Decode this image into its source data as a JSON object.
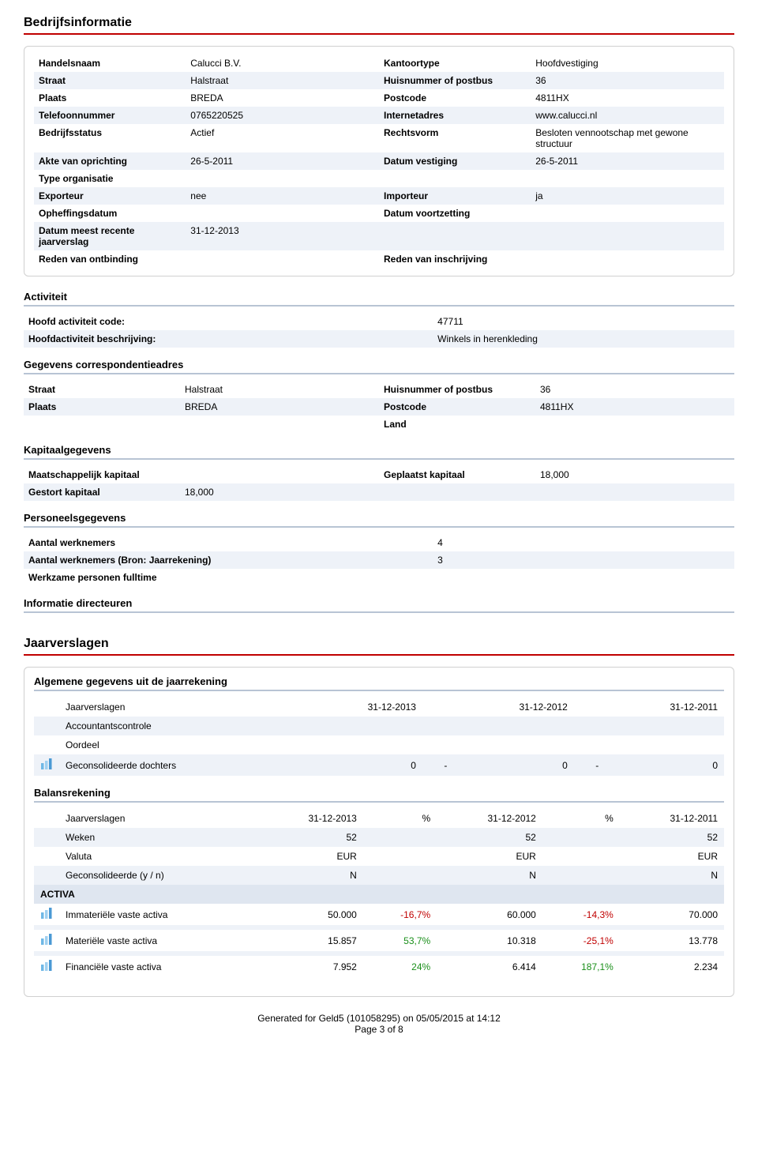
{
  "section_bedrijfsinformatie": "Bedrijfsinformatie",
  "company": {
    "rows": [
      {
        "l1": "Handelsnaam",
        "v1": "Calucci B.V.",
        "l2": "Kantoortype",
        "v2": "Hoofdvestiging"
      },
      {
        "l1": "Straat",
        "v1": "Halstraat",
        "l2": "Huisnummer of postbus",
        "v2": "36"
      },
      {
        "l1": "Plaats",
        "v1": "BREDA",
        "l2": "Postcode",
        "v2": "4811HX"
      },
      {
        "l1": "Telefoonnummer",
        "v1": "0765220525",
        "l2": "Internetadres",
        "v2": "www.calucci.nl"
      },
      {
        "l1": "Bedrijfsstatus",
        "v1": "Actief",
        "l2": "Rechtsvorm",
        "v2": "Besloten vennootschap met gewone structuur"
      },
      {
        "l1": "Akte van oprichting",
        "v1": "26-5-2011",
        "l2": "Datum vestiging",
        "v2": "26-5-2011"
      },
      {
        "l1": "Type organisatie",
        "v1": "",
        "l2": "",
        "v2": ""
      },
      {
        "l1": "Exporteur",
        "v1": "nee",
        "l2": "Importeur",
        "v2": "ja"
      },
      {
        "l1": "Opheffingsdatum",
        "v1": "",
        "l2": "Datum voortzetting",
        "v2": ""
      },
      {
        "l1": "Datum meest recente jaarverslag",
        "v1": "31-12-2013",
        "l2": "",
        "v2": ""
      },
      {
        "l1": "Reden van ontbinding",
        "v1": "",
        "l2": "Reden van inschrijving",
        "v2": ""
      }
    ]
  },
  "activiteit": {
    "heading": "Activiteit",
    "rows": [
      {
        "l": "Hoofd activiteit code:",
        "v": "47711"
      },
      {
        "l": "Hoofdactiviteit beschrijving:",
        "v": "Winkels in herenkleding"
      }
    ]
  },
  "correspondentie": {
    "heading": "Gegevens correspondentieadres",
    "rows": [
      {
        "l1": "Straat",
        "v1": "Halstraat",
        "l2": "Huisnummer of postbus",
        "v2": "36"
      },
      {
        "l1": "Plaats",
        "v1": "BREDA",
        "l2": "Postcode",
        "v2": "4811HX"
      },
      {
        "l1": "",
        "v1": "",
        "l2": "Land",
        "v2": ""
      }
    ]
  },
  "kapitaal": {
    "heading": "Kapitaalgegevens",
    "rows": [
      {
        "l1": "Maatschappelijk kapitaal",
        "v1": "",
        "l2": "Geplaatst kapitaal",
        "v2": "18,000"
      },
      {
        "l1": "Gestort kapitaal",
        "v1": "18,000",
        "l2": "",
        "v2": ""
      }
    ]
  },
  "personeel": {
    "heading": "Personeelsgegevens",
    "rows": [
      {
        "l": "Aantal werknemers",
        "v": "4"
      },
      {
        "l": "Aantal werknemers (Bron: Jaarrekening)",
        "v": "3"
      },
      {
        "l": "Werkzame personen fulltime",
        "v": ""
      }
    ]
  },
  "directeuren_heading": "Informatie directeuren",
  "section_jaarverslagen": "Jaarverslagen",
  "algemeen": {
    "heading": "Algemene gegevens uit de jaarrekening",
    "header": [
      "Jaarverslagen",
      "31-12-2013",
      "",
      "31-12-2012",
      "",
      "31-12-2011"
    ],
    "rows": [
      {
        "l": "Accountantscontrole",
        "c1": "",
        "p1": "",
        "c2": "",
        "p2": "",
        "c3": ""
      },
      {
        "l": "Oordeel",
        "c1": "",
        "p1": "",
        "c2": "",
        "p2": "",
        "c3": ""
      },
      {
        "l": "Geconsolideerde dochters",
        "c1": "0",
        "p1": "-",
        "c2": "0",
        "p2": "-",
        "c3": "0",
        "icon": true
      }
    ]
  },
  "balans": {
    "heading": "Balansrekening",
    "header": [
      "Jaarverslagen",
      "31-12-2013",
      "%",
      "31-12-2012",
      "%",
      "31-12-2011"
    ],
    "toprows": [
      {
        "l": "Weken",
        "c1": "52",
        "p1": "",
        "c2": "52",
        "p2": "",
        "c3": "52"
      },
      {
        "l": "Valuta",
        "c1": "EUR",
        "p1": "",
        "c2": "EUR",
        "p2": "",
        "c3": "EUR"
      },
      {
        "l": "Geconsolideerde (y / n)",
        "c1": "N",
        "p1": "",
        "c2": "N",
        "p2": "",
        "c3": "N"
      }
    ],
    "section_label": "ACTIVA",
    "rows": [
      {
        "l": "Immateriële vaste activa",
        "c1": "50.000",
        "p1": "-16,7%",
        "p1c": "neg",
        "c2": "60.000",
        "p2": "-14,3%",
        "p2c": "neg",
        "c3": "70.000"
      },
      {
        "l": "Materiële vaste activa",
        "c1": "15.857",
        "p1": "53,7%",
        "p1c": "pos",
        "c2": "10.318",
        "p2": "-25,1%",
        "p2c": "neg",
        "c3": "13.778"
      },
      {
        "l": "Financiële vaste activa",
        "c1": "7.952",
        "p1": "24%",
        "p1c": "pos",
        "c2": "6.414",
        "p2": "187,1%",
        "p2c": "pos",
        "c3": "2.234"
      }
    ]
  },
  "footer": {
    "line1": "Generated for Geld5 (101058295) on 05/05/2015 at 14:12",
    "line2": "Page 3 of 8"
  },
  "colors": {
    "accent": "#c00000",
    "row_alt": "#eef2f8",
    "sub_border": "#b8c4d4",
    "pos": "#1a8f1a",
    "neg": "#c00000",
    "section_bg": "#dfe6f0"
  },
  "icon_svg": {
    "bars": [
      "#6fb8e6",
      "#9fd0f0",
      "#4a99d4"
    ]
  }
}
